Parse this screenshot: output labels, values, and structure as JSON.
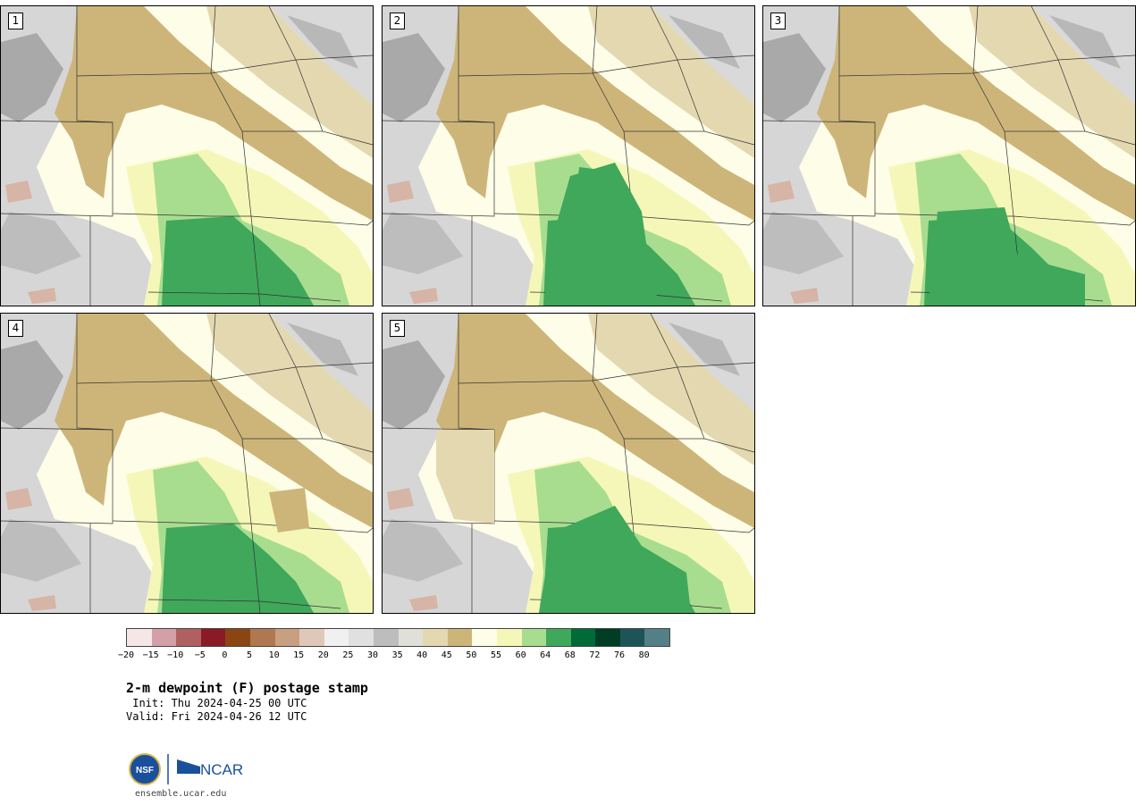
{
  "panels": [
    {
      "label": "1"
    },
    {
      "label": "2"
    },
    {
      "label": "3"
    },
    {
      "label": "4"
    },
    {
      "label": "5"
    }
  ],
  "colorbar": {
    "colors": [
      "#f5e6e8",
      "#d4a0a8",
      "#b06060",
      "#8a1a25",
      "#8b4513",
      "#b07850",
      "#c8a080",
      "#e0c8b8",
      "#f0f0f0",
      "#e0e0e0",
      "#bdbdbd",
      "#e0e0d8",
      "#e4d8b0",
      "#cdb57a",
      "#fdfde8",
      "#f5f7b8",
      "#a8dd90",
      "#3fa85a",
      "#006b38",
      "#003d25",
      "#1d5458",
      "#537f86"
    ],
    "ticks": [
      "−20",
      "−15",
      "−10",
      "−5",
      "0",
      "5",
      "10",
      "15",
      "20",
      "25",
      "30",
      "35",
      "40",
      "45",
      "50",
      "55",
      "60",
      "64",
      "68",
      "72",
      "76",
      "80"
    ]
  },
  "title": "2-m dewpoint (F) postage stamp",
  "init": " Init: Thu 2024-04-25 00 UTC",
  "valid": "Valid: Fri 2024-04-26 12 UTC",
  "logos": {
    "nsf": "NSF",
    "ncar": "NCAR"
  },
  "footer_url": "ensemble.ucar.edu"
}
